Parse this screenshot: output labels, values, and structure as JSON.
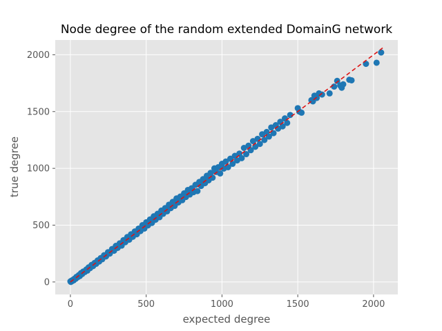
{
  "chart_data": {
    "type": "scatter",
    "title": "Node degree of the random extended DomainG network",
    "xlabel": "expected degree",
    "ylabel": "true degree",
    "xlim": [
      -100,
      2160
    ],
    "ylim": [
      -110,
      2130
    ],
    "xticks": [
      0,
      500,
      1000,
      1500,
      2000
    ],
    "yticks": [
      0,
      500,
      1000,
      1500,
      2000
    ],
    "grid": true,
    "style": "ggplot",
    "colors": {
      "background": "#e5e5e5",
      "grid": "#ffffff",
      "points": "#1f77b4",
      "reference_line": "#dd1111"
    },
    "reference_line": {
      "x": [
        0,
        2060
      ],
      "y": [
        0,
        2060
      ],
      "dash": "dashed"
    },
    "series": [
      {
        "points": [
          [
            0,
            5
          ],
          [
            3,
            0
          ],
          [
            8,
            12
          ],
          [
            12,
            8
          ],
          [
            18,
            20
          ],
          [
            22,
            15
          ],
          [
            28,
            30
          ],
          [
            35,
            28
          ],
          [
            40,
            45
          ],
          [
            48,
            42
          ],
          [
            55,
            60
          ],
          [
            62,
            52
          ],
          [
            70,
            78
          ],
          [
            78,
            70
          ],
          [
            85,
            92
          ],
          [
            95,
            88
          ],
          [
            105,
            110
          ],
          [
            112,
            100
          ],
          [
            120,
            128
          ],
          [
            130,
            122
          ],
          [
            140,
            150
          ],
          [
            150,
            140
          ],
          [
            160,
            168
          ],
          [
            170,
            160
          ],
          [
            180,
            190
          ],
          [
            190,
            180
          ],
          [
            200,
            210
          ],
          [
            210,
            200
          ],
          [
            222,
            235
          ],
          [
            235,
            225
          ],
          [
            248,
            262
          ],
          [
            260,
            250
          ],
          [
            275,
            290
          ],
          [
            288,
            275
          ],
          [
            300,
            318
          ],
          [
            312,
            300
          ],
          [
            325,
            340
          ],
          [
            338,
            320
          ],
          [
            350,
            368
          ],
          [
            362,
            350
          ],
          [
            375,
            395
          ],
          [
            388,
            372
          ],
          [
            400,
            420
          ],
          [
            412,
            398
          ],
          [
            425,
            445
          ],
          [
            438,
            420
          ],
          [
            450,
            470
          ],
          [
            462,
            448
          ],
          [
            475,
            500
          ],
          [
            488,
            470
          ],
          [
            500,
            525
          ],
          [
            512,
            498
          ],
          [
            525,
            550
          ],
          [
            538,
            520
          ],
          [
            550,
            578
          ],
          [
            562,
            548
          ],
          [
            575,
            600
          ],
          [
            588,
            570
          ],
          [
            600,
            628
          ],
          [
            612,
            600
          ],
          [
            625,
            650
          ],
          [
            638,
            622
          ],
          [
            650,
            680
          ],
          [
            662,
            650
          ],
          [
            675,
            705
          ],
          [
            688,
            670
          ],
          [
            700,
            735
          ],
          [
            712,
            700
          ],
          [
            725,
            752
          ],
          [
            738,
            720
          ],
          [
            750,
            780
          ],
          [
            762,
            748
          ],
          [
            775,
            810
          ],
          [
            788,
            770
          ],
          [
            800,
            825
          ],
          [
            812,
            790
          ],
          [
            825,
            855
          ],
          [
            838,
            800
          ],
          [
            850,
            880
          ],
          [
            862,
            845
          ],
          [
            875,
            905
          ],
          [
            888,
            870
          ],
          [
            900,
            935
          ],
          [
            912,
            895
          ],
          [
            925,
            960
          ],
          [
            938,
            918
          ],
          [
            950,
            1000
          ],
          [
            962,
            968
          ],
          [
            975,
            1010
          ],
          [
            988,
            955
          ],
          [
            1000,
            1040
          ],
          [
            1012,
            998
          ],
          [
            1025,
            1060
          ],
          [
            1040,
            1010
          ],
          [
            1055,
            1085
          ],
          [
            1070,
            1040
          ],
          [
            1085,
            1110
          ],
          [
            1100,
            1070
          ],
          [
            1115,
            1130
          ],
          [
            1130,
            1090
          ],
          [
            1145,
            1180
          ],
          [
            1160,
            1125
          ],
          [
            1175,
            1200
          ],
          [
            1190,
            1160
          ],
          [
            1205,
            1240
          ],
          [
            1220,
            1190
          ],
          [
            1235,
            1260
          ],
          [
            1250,
            1215
          ],
          [
            1265,
            1300
          ],
          [
            1280,
            1250
          ],
          [
            1295,
            1320
          ],
          [
            1310,
            1280
          ],
          [
            1325,
            1360
          ],
          [
            1340,
            1310
          ],
          [
            1355,
            1380
          ],
          [
            1370,
            1350
          ],
          [
            1385,
            1410
          ],
          [
            1400,
            1370
          ],
          [
            1415,
            1440
          ],
          [
            1430,
            1400
          ],
          [
            1450,
            1470
          ],
          [
            1500,
            1530
          ],
          [
            1510,
            1500
          ],
          [
            1525,
            1490
          ],
          [
            1590,
            1600
          ],
          [
            1600,
            1590
          ],
          [
            1610,
            1640
          ],
          [
            1625,
            1620
          ],
          [
            1640,
            1660
          ],
          [
            1660,
            1650
          ],
          [
            1710,
            1660
          ],
          [
            1740,
            1720
          ],
          [
            1760,
            1770
          ],
          [
            1780,
            1730
          ],
          [
            1790,
            1710
          ],
          [
            1800,
            1740
          ],
          [
            1840,
            1780
          ],
          [
            1855,
            1775
          ],
          [
            1950,
            1920
          ],
          [
            2020,
            1930
          ],
          [
            2050,
            2020
          ]
        ]
      }
    ]
  }
}
